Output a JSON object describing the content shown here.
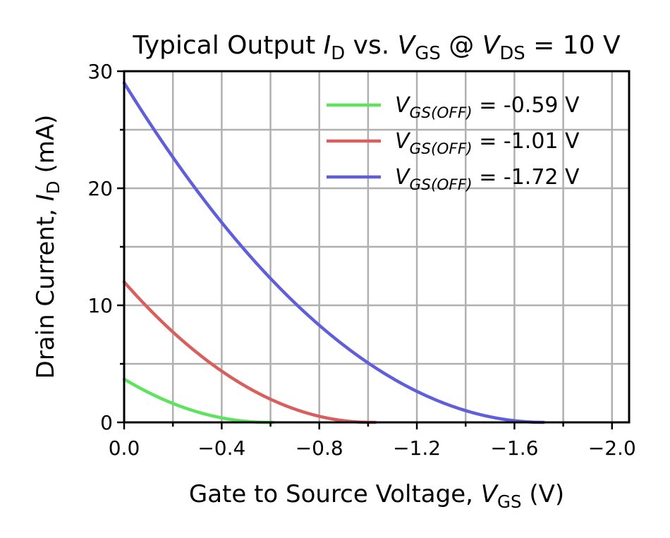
{
  "chart_data": {
    "type": "line",
    "title_parts": [
      {
        "t": "Typical Output "
      },
      {
        "t": "I",
        "i": true
      },
      {
        "t": "D",
        "sub": true
      },
      {
        "t": " vs. "
      },
      {
        "t": "V",
        "i": true
      },
      {
        "t": "GS",
        "sub": true
      },
      {
        "t": " @ "
      },
      {
        "t": "V",
        "i": true
      },
      {
        "t": "DS",
        "sub": true
      },
      {
        "t": " = 10 V"
      }
    ],
    "xlabel_parts": [
      {
        "t": "Gate to Source Voltage, "
      },
      {
        "t": "V",
        "i": true
      },
      {
        "t": "GS",
        "sub": true
      },
      {
        "t": " (V)"
      }
    ],
    "ylabel_parts": [
      {
        "t": "Drain Current, "
      },
      {
        "t": "I",
        "i": true
      },
      {
        "t": "D",
        "sub": true
      },
      {
        "t": " (mA)"
      }
    ],
    "xlim": [
      0,
      -2.07
    ],
    "ylim": [
      0,
      30
    ],
    "x_major_ticks": [
      0.0,
      -0.4,
      -0.8,
      -1.2,
      -1.6,
      -2.0
    ],
    "x_tick_labels": [
      "0.0",
      "−0.4",
      "−0.8",
      "−1.2",
      "−1.6",
      "−2.0"
    ],
    "x_grid": [
      0.0,
      -0.2,
      -0.4,
      -0.6,
      -0.8,
      -1.0,
      -1.2,
      -1.4,
      -1.6,
      -1.8,
      -2.0
    ],
    "y_major_ticks": [
      0,
      10,
      20,
      30
    ],
    "y_tick_labels": [
      "0",
      "10",
      "20",
      "30"
    ],
    "y_grid": [
      0,
      5,
      10,
      15,
      20,
      25,
      30
    ],
    "grid": true,
    "legend_position": "top-right",
    "series": [
      {
        "name_parts": [
          {
            "t": "V",
            "i": true
          },
          {
            "t": "GS(OFF)",
            "sub": true,
            "i": true
          },
          {
            "t": " = -0.59 V"
          }
        ],
        "color": "#5ee35e",
        "idss": 3.7,
        "vgs_off": -0.59,
        "x": [
          0.0,
          -0.1,
          -0.2,
          -0.3,
          -0.4,
          -0.5,
          -0.59,
          -0.61
        ],
        "y": [
          3.7,
          2.55,
          1.6,
          0.88,
          0.35,
          0.05,
          0.0,
          0.0
        ]
      },
      {
        "name_parts": [
          {
            "t": "V",
            "i": true
          },
          {
            "t": "GS(OFF)",
            "sub": true,
            "i": true
          },
          {
            "t": " = -1.01 V"
          }
        ],
        "color": "#d95f5f",
        "idss": 12.0,
        "vgs_off": -1.01,
        "x": [
          0.0,
          -0.2,
          -0.4,
          -0.6,
          -0.8,
          -1.01,
          -1.03
        ],
        "y": [
          12.0,
          7.7,
          4.4,
          2.0,
          0.5,
          0.0,
          0.0
        ]
      },
      {
        "name_parts": [
          {
            "t": "V",
            "i": true
          },
          {
            "t": "GS(OFF)",
            "sub": true,
            "i": true
          },
          {
            "t": " = -1.72 V"
          }
        ],
        "color": "#5f5fdb",
        "idss": 29.0,
        "vgs_off": -1.72,
        "x": [
          0.0,
          -0.2,
          -0.4,
          -0.6,
          -0.8,
          -1.0,
          -1.2,
          -1.4,
          -1.6,
          -1.72
        ],
        "y": [
          29.0,
          22.6,
          17.1,
          12.4,
          8.4,
          5.2,
          2.8,
          1.0,
          0.15,
          0.0
        ]
      }
    ]
  }
}
